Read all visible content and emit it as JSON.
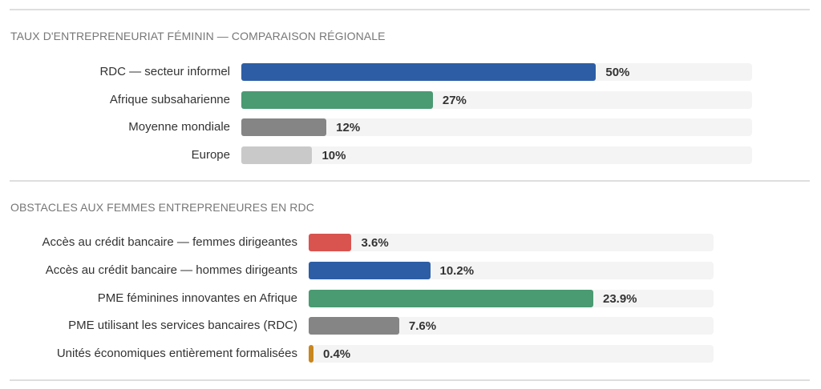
{
  "chart_data": [
    {
      "type": "bar",
      "orientation": "horizontal",
      "title": "TAUX D'ENTREPRENEURIAT FÉMININ — COMPARAISON RÉGIONALE",
      "categories": [
        "RDC — secteur informel",
        "Afrique subsaharienne",
        "Moyenne mondiale",
        "Europe"
      ],
      "values": [
        50,
        27,
        12,
        10
      ],
      "value_labels": [
        "50%",
        "27%",
        "12%",
        "10%"
      ],
      "colors": [
        "#2d5ea5",
        "#4a9a72",
        "#858585",
        "#c9c9c9"
      ],
      "xlim": [
        0,
        72
      ],
      "grid": false
    },
    {
      "type": "bar",
      "orientation": "horizontal",
      "title": "OBSTACLES AUX FEMMES ENTREPRENEURES EN RDC",
      "categories": [
        "Accès au crédit bancaire — femmes dirigeantes",
        "Accès au crédit bancaire — hommes dirigeants",
        "PME féminines innovantes en Afrique",
        "PME utilisant les services bancaires (RDC)",
        "Unités économiques entièrement formalisées"
      ],
      "values": [
        3.6,
        10.2,
        23.9,
        7.6,
        0.4
      ],
      "value_labels": [
        "3.6%",
        "10.2%",
        "23.9%",
        "7.6%",
        "0.4%"
      ],
      "colors": [
        "#d9534f",
        "#2d5ea5",
        "#4a9a72",
        "#858585",
        "#c8861e"
      ],
      "xlim": [
        0,
        34
      ],
      "grid": false
    }
  ]
}
